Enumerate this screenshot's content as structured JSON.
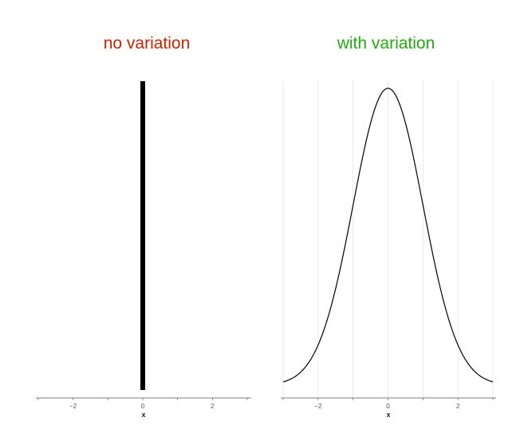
{
  "colors": {
    "title_left": "#cc2200",
    "title_right": "#22aa11",
    "line": "#000000",
    "grid": "#e6e6e6",
    "axis": "#555555"
  },
  "chart_data": [
    {
      "type": "line",
      "title": "no variation",
      "xlabel": "x",
      "ylabel": "",
      "xlim": [
        -3,
        3
      ],
      "x_ticks": [
        -2,
        0,
        2
      ],
      "x_tick_labels": [
        "−2",
        "0",
        "2"
      ],
      "grid": false,
      "series": [
        {
          "kind": "spike",
          "x": [
            0,
            0
          ],
          "y": [
            0,
            1
          ]
        }
      ]
    },
    {
      "type": "line",
      "title": "with variation",
      "xlabel": "x",
      "ylabel": "",
      "xlim": [
        -3,
        3
      ],
      "x_ticks": [
        -2,
        0,
        2
      ],
      "x_tick_labels": [
        "−2",
        "0",
        "2"
      ],
      "grid": true,
      "series": [
        {
          "kind": "density",
          "x": [
            -3,
            -2.5,
            -2,
            -1.5,
            -1,
            -0.5,
            0,
            0.5,
            1,
            1.5,
            2,
            2.5,
            3
          ],
          "y": [
            0.0044,
            0.0175,
            0.054,
            0.1295,
            0.242,
            0.352,
            0.3989,
            0.352,
            0.242,
            0.1295,
            0.054,
            0.0175,
            0.0044
          ]
        }
      ]
    }
  ]
}
